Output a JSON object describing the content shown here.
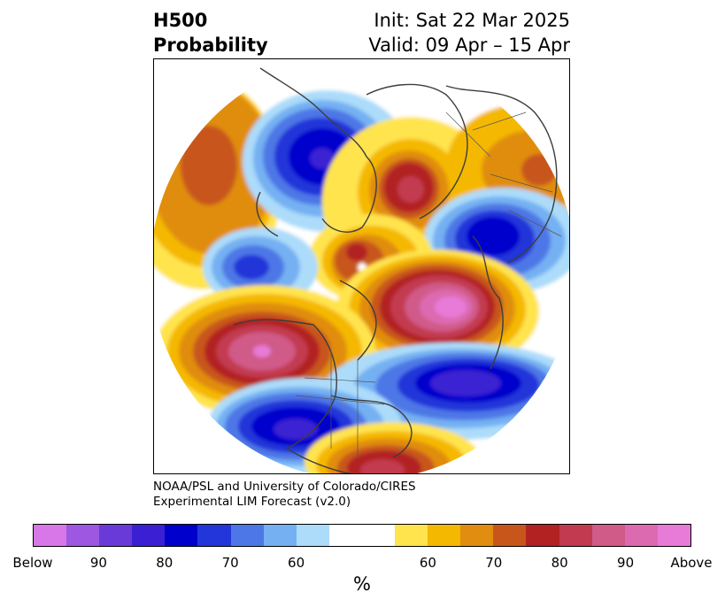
{
  "title": {
    "left_line1": "H500",
    "left_line2": "Probability",
    "right_line1": "Init: Sat 22 Mar 2025",
    "right_line2": "Valid: 09 Apr – 15 Apr"
  },
  "credit": {
    "line1": "NOAA/PSL and University of Colorado/CIRES",
    "line2": "Experimental LIM Forecast (v2.0)"
  },
  "colorbar": {
    "unit": "%",
    "colors": [
      "#d877e8",
      "#9d57e0",
      "#6a3ad8",
      "#3a20d2",
      "#0000cc",
      "#2336d9",
      "#4d77e6",
      "#75b0f2",
      "#acdcfa",
      "#ffffff",
      "#ffffff",
      "#ffe44d",
      "#f5b800",
      "#e08d10",
      "#c8561a",
      "#b22222",
      "#c23a50",
      "#d05a88",
      "#dc6ab0",
      "#e87ad8"
    ],
    "ticks": [
      "Below",
      "90",
      "80",
      "70",
      "60",
      "60",
      "70",
      "80",
      "90",
      "Above"
    ]
  },
  "map": {
    "projection": "North polar stereographic",
    "anomalies": [
      {
        "region": "Central Canada",
        "sign": "below",
        "peak": "90"
      },
      {
        "region": "Polar / Greenland",
        "sign": "above",
        "peak": "80"
      },
      {
        "region": "Northern Europe",
        "sign": "below",
        "peak": "90"
      },
      {
        "region": "North Atlantic",
        "sign": "above",
        "peak": "Above"
      },
      {
        "region": "North Pacific",
        "sign": "above",
        "peak": "90"
      },
      {
        "region": "Western Russia",
        "sign": "below",
        "peak": "80"
      },
      {
        "region": "Siberia",
        "sign": "above",
        "peak": "70"
      },
      {
        "region": "Southern US / Gulf",
        "sign": "above",
        "peak": "80"
      },
      {
        "region": "Western US",
        "sign": "below",
        "peak": "80"
      }
    ]
  }
}
